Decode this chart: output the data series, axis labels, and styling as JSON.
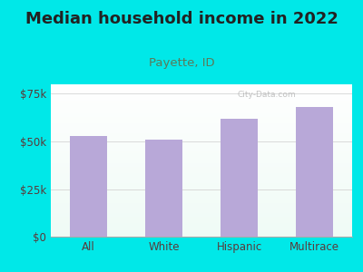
{
  "title": "Median household income in 2022",
  "subtitle": "Payette, ID",
  "categories": [
    "All",
    "White",
    "Hispanic",
    "Multirace"
  ],
  "values": [
    53000,
    51000,
    62000,
    68000
  ],
  "bar_color": "#b8a8d8",
  "background_outer": "#00e8e8",
  "title_color": "#222222",
  "subtitle_color": "#5a7a5a",
  "tick_label_color": "#5a3a3a",
  "ytick_labels": [
    "$0",
    "$25k",
    "$50k",
    "$75k"
  ],
  "ytick_values": [
    0,
    25000,
    50000,
    75000
  ],
  "ylim": [
    0,
    80000
  ],
  "title_fontsize": 13,
  "subtitle_fontsize": 9.5,
  "tick_fontsize": 8.5,
  "watermark": "City-Data.com"
}
